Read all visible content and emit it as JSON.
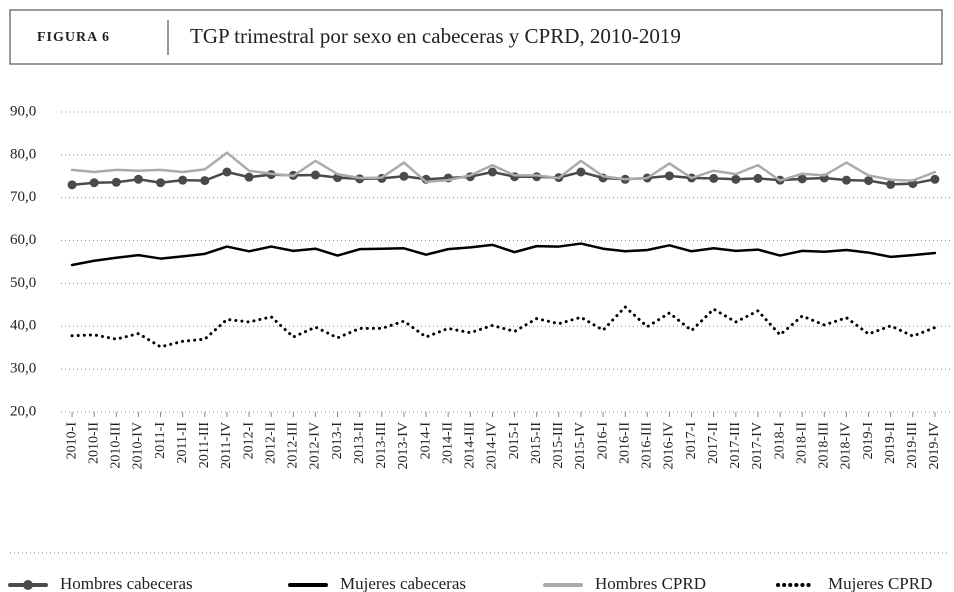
{
  "chart_data": {
    "type": "line",
    "figure_label": "FIGURA 6",
    "title": "TGP trimestral por sexo en cabeceras y CPRD, 2010-2019",
    "categories": [
      "2010-I",
      "2010-II",
      "2010-III",
      "2010-IV",
      "2011-I",
      "2011-II",
      "2011-III",
      "2011-IV",
      "2012-I",
      "2012-II",
      "2012-III",
      "2012-IV",
      "2013-I",
      "2013-II",
      "2013-III",
      "2013-IV",
      "2014-I",
      "2014-II",
      "2014-III",
      "2014-IV",
      "2015-I",
      "2015-II",
      "2015-III",
      "2015-IV",
      "2016-I",
      "2016-II",
      "2016-III",
      "2016-IV",
      "2017-I",
      "2017-II",
      "2017-III",
      "2017-IV",
      "2018-I",
      "2018-II",
      "2018-III",
      "2018-IV",
      "2019-I",
      "2019-II",
      "2019-III",
      "2019-IV"
    ],
    "series": [
      {
        "name": "Hombres cabeceras",
        "color": "#4a4a4a",
        "marker": "circle",
        "values": [
          73.0,
          73.5,
          73.6,
          74.3,
          73.5,
          74.1,
          74.0,
          76.0,
          74.8,
          75.4,
          75.2,
          75.3,
          74.7,
          74.4,
          74.5,
          75.0,
          74.3,
          74.6,
          74.9,
          76.0,
          74.9,
          74.9,
          74.7,
          76.0,
          74.6,
          74.3,
          74.6,
          75.1,
          74.6,
          74.5,
          74.3,
          74.5,
          74.1,
          74.4,
          74.6,
          74.1,
          74.0,
          73.1,
          73.3,
          74.3
        ]
      },
      {
        "name": "Mujeres cabeceras",
        "color": "#000000",
        "values": [
          54.3,
          55.3,
          56.0,
          56.6,
          55.8,
          56.3,
          56.9,
          58.6,
          57.5,
          58.6,
          57.6,
          58.1,
          56.5,
          58.0,
          58.1,
          58.2,
          56.7,
          58.0,
          58.4,
          59.0,
          57.3,
          58.7,
          58.6,
          59.3,
          58.1,
          57.5,
          57.8,
          58.9,
          57.5,
          58.2,
          57.6,
          57.9,
          56.5,
          57.6,
          57.4,
          57.8,
          57.2,
          56.2,
          56.6,
          57.1
        ]
      },
      {
        "name": "Hombres CPRD",
        "color": "#ababab",
        "values": [
          76.5,
          76.0,
          76.5,
          76.3,
          76.5,
          76.0,
          76.6,
          80.5,
          76.3,
          75.6,
          75.1,
          78.6,
          75.5,
          74.6,
          74.7,
          78.2,
          73.7,
          74.1,
          75.2,
          77.6,
          75.2,
          75.2,
          74.6,
          78.6,
          75.0,
          74.3,
          74.6,
          78.0,
          74.6,
          76.3,
          75.5,
          77.6,
          74.0,
          75.6,
          75.2,
          78.2,
          75.2,
          74.2,
          74.0,
          76.0
        ]
      },
      {
        "name": "Mujeres CPRD",
        "color": "#000000",
        "dash": "dotted",
        "values": [
          37.8,
          38.0,
          37.0,
          38.3,
          35.2,
          36.5,
          37.0,
          41.6,
          41.0,
          42.2,
          37.5,
          39.8,
          37.3,
          39.5,
          39.5,
          41.2,
          37.5,
          39.5,
          38.5,
          40.2,
          38.8,
          41.8,
          40.6,
          42.1,
          39.1,
          44.5,
          39.9,
          43.1,
          39.0,
          44.0,
          41.0,
          43.6,
          38.0,
          42.4,
          40.3,
          42.0,
          38.2,
          40.1,
          37.7,
          39.7
        ]
      }
    ],
    "ylim": [
      20,
      90
    ],
    "yticks": [
      {
        "value": 20,
        "label": "20,0"
      },
      {
        "value": 30,
        "label": "30,0"
      },
      {
        "value": 40,
        "label": "40,0"
      },
      {
        "value": 50,
        "label": "50,0"
      },
      {
        "value": 60,
        "label": "60,0"
      },
      {
        "value": 70,
        "label": "70,0"
      },
      {
        "value": 80,
        "label": "80,0"
      },
      {
        "value": 90,
        "label": "90,0"
      }
    ],
    "grid": true
  }
}
